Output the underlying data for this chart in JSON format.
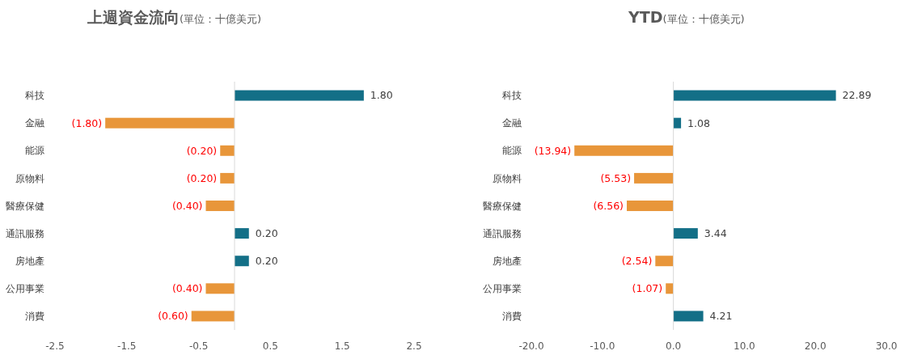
{
  "chart_data": [
    {
      "type": "bar",
      "orientation": "horizontal",
      "title": "上週資金流向(單位：十億美元)",
      "categories": [
        "科技",
        "金融",
        "能源",
        "原物料",
        "醫療保健",
        "通訊服務",
        "房地產",
        "公用事業",
        "消費"
      ],
      "values": [
        1.8,
        -1.8,
        -0.2,
        -0.2,
        -0.4,
        0.2,
        0.2,
        -0.4,
        -0.6
      ],
      "colors": [
        "#136f87",
        "#e8963a",
        "#e8963a",
        "#e8963a",
        "#e8963a",
        "#136f87",
        "#136f87",
        "#e8963a",
        "#e8963a"
      ],
      "value_labels": [
        "1.80",
        "(1.80)",
        "(0.20)",
        "(0.20)",
        "(0.40)",
        "0.20",
        "0.20",
        "(0.40)",
        "(0.60)"
      ],
      "xlim": [
        -2.5,
        2.5
      ],
      "xticks": [
        -2.5,
        -1.5,
        -0.5,
        0.5,
        1.5,
        2.5
      ]
    },
    {
      "type": "bar",
      "orientation": "horizontal",
      "title": "YTD(單位：十億美元)",
      "categories": [
        "科技",
        "金融",
        "能源",
        "原物料",
        "醫療保健",
        "通訊服務",
        "房地產",
        "公用事業",
        "消費"
      ],
      "values": [
        22.89,
        1.08,
        -13.94,
        -5.53,
        -6.56,
        3.44,
        -2.54,
        -1.07,
        4.21
      ],
      "colors": [
        "#136f87",
        "#136f87",
        "#e8963a",
        "#e8963a",
        "#e8963a",
        "#136f87",
        "#e8963a",
        "#e8963a",
        "#136f87"
      ],
      "value_labels": [
        "22.89",
        "1.08",
        "(13.94)",
        "(5.53)",
        "(6.56)",
        "3.44",
        "(2.54)",
        "(1.07)",
        "4.21"
      ],
      "xlim": [
        -20,
        30
      ],
      "xticks": [
        {
          "value": -20,
          "label": "-20.0"
        },
        {
          "value": -10,
          "label": "-10.0"
        },
        {
          "value": 0,
          "label": "0.0"
        },
        {
          "value": 10,
          "label": "10.0"
        },
        {
          "value": 20,
          "label": "20.0"
        },
        {
          "value": 30,
          "label": "30.0"
        }
      ]
    }
  ]
}
